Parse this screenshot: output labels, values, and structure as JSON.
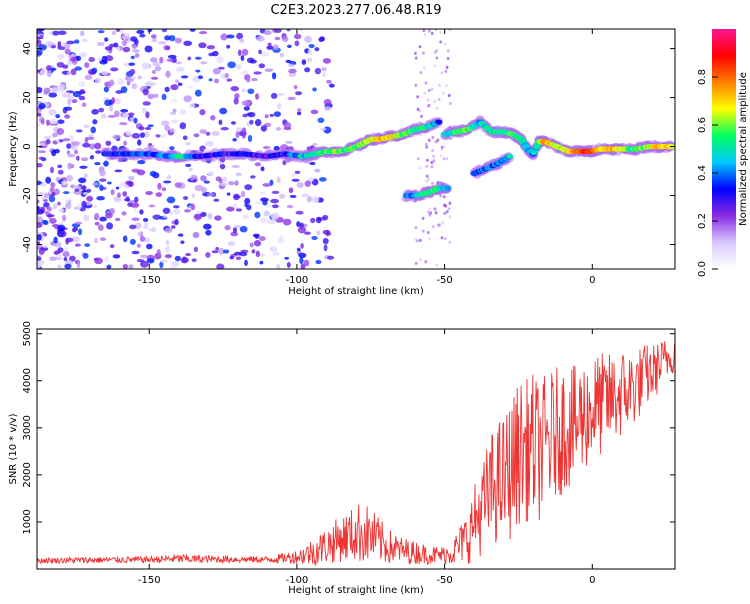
{
  "title": "C2E3.2023.277.06.48.R19",
  "chart_data": [
    {
      "type": "heatmap",
      "title": "C2E3.2023.277.06.48.R19",
      "xlabel": "Height of straight line (km)",
      "ylabel": "Frequency (Hz)",
      "xlim": [
        -188,
        28
      ],
      "ylim": [
        -50,
        48
      ],
      "x_ticks": [
        -150,
        -100,
        -50,
        0
      ],
      "x_tick_labels": [
        "-150",
        "-100",
        "-50",
        "0"
      ],
      "y_ticks": [
        40,
        20,
        0,
        -20,
        -40
      ],
      "y_tick_labels": [
        "40",
        "20",
        "0",
        "-20",
        "-40"
      ],
      "colorbar": {
        "label": "Normalized spectral amplitude",
        "range": [
          0,
          1
        ],
        "ticks": [
          0.0,
          0.2,
          0.4,
          0.6,
          0.8
        ],
        "tick_labels": [
          "0.0",
          "0.2",
          "0.4",
          "0.6",
          "0.8"
        ],
        "colors": [
          "#ffffff",
          "#d8c8ff",
          "#8a2be2",
          "#0000ff",
          "#00c8ff",
          "#00ff60",
          "#ffff00",
          "#ff8000",
          "#ff0000",
          "#ff1493"
        ]
      },
      "series": [
        {
          "points": [
            [
              -165,
              -3,
              0.3
            ],
            [
              -158,
              -3,
              0.35
            ],
            [
              -150,
              -3,
              0.35
            ],
            [
              -143,
              -4,
              0.4
            ],
            [
              -140,
              -4,
              0.55
            ],
            [
              -133,
              -4,
              0.3
            ],
            [
              -125,
              -3,
              0.3
            ],
            [
              -118,
              -3,
              0.3
            ],
            [
              -110,
              -4,
              0.3
            ],
            [
              -104,
              -3,
              0.3
            ],
            [
              -98,
              -4,
              0.45
            ],
            [
              -94,
              -3,
              0.5
            ],
            [
              -90,
              -2,
              0.55
            ],
            [
              -86,
              -2,
              0.6
            ],
            [
              -82,
              -1,
              0.55
            ],
            [
              -78,
              1,
              0.6
            ],
            [
              -75,
              3,
              0.65
            ],
            [
              -72,
              3,
              0.7
            ],
            [
              -68,
              4,
              0.7
            ],
            [
              -64,
              5,
              0.6
            ],
            [
              -60,
              7,
              0.55
            ],
            [
              -56,
              8,
              0.5
            ],
            [
              -52,
              10,
              0.4
            ]
          ]
        },
        {
          "points": [
            [
              -50,
              5,
              0.45
            ],
            [
              -46,
              6,
              0.55
            ],
            [
              -42,
              7,
              0.6
            ],
            [
              -38,
              10,
              0.45
            ],
            [
              -34,
              6,
              0.5
            ],
            [
              -30,
              6,
              0.5
            ],
            [
              -27,
              5,
              0.55
            ],
            [
              -24,
              3,
              0.5
            ],
            [
              -22,
              -1,
              0.45
            ],
            [
              -20,
              -3,
              0.4
            ],
            [
              -18,
              2,
              0.55
            ],
            [
              -16,
              2,
              0.8
            ],
            [
              -12,
              0,
              0.6
            ],
            [
              -8,
              -2,
              0.7
            ],
            [
              -4,
              -2,
              0.8
            ],
            [
              -1,
              -2,
              0.85
            ],
            [
              3,
              -1,
              0.7
            ],
            [
              7,
              -1,
              0.75
            ],
            [
              11,
              -1,
              0.6
            ],
            [
              15,
              -1,
              0.55
            ],
            [
              19,
              0,
              0.6
            ],
            [
              23,
              0,
              0.75
            ],
            [
              27,
              0,
              0.7
            ]
          ]
        },
        {
          "points": [
            [
              -63,
              -20,
              0.4
            ],
            [
              -60,
              -20,
              0.4
            ],
            [
              -56,
              -19,
              0.55
            ],
            [
              -52,
              -17,
              0.5
            ],
            [
              -49,
              -17,
              0.45
            ]
          ]
        },
        {
          "points": [
            [
              -40,
              -11,
              0.35
            ],
            [
              -36,
              -9,
              0.4
            ],
            [
              -32,
              -7,
              0.4
            ],
            [
              -28,
              -4,
              0.45
            ]
          ]
        }
      ]
    },
    {
      "type": "line",
      "title": "",
      "xlabel": "Height of straight line (km)",
      "ylabel": "SNR (10 * v/v)",
      "xlim": [
        -188,
        28
      ],
      "ylim": [
        0,
        5100
      ],
      "x_ticks": [
        -150,
        -100,
        -50,
        0
      ],
      "x_tick_labels": [
        "-150",
        "-100",
        "-50",
        "0"
      ],
      "y_ticks": [
        1000,
        2000,
        3000,
        4000,
        5000
      ],
      "y_tick_labels": [
        "1000",
        "2000",
        "3000",
        "4000",
        "5000"
      ],
      "series": [
        {
          "color": "#ee3333",
          "x": [
            -188,
            -170,
            -150,
            -140,
            -130,
            -110,
            -100,
            -95,
            -90,
            -85,
            -80,
            -78,
            -75,
            -72,
            -70,
            -65,
            -60,
            -55,
            -50,
            -47,
            -45,
            -42,
            -40,
            -37,
            -35,
            -33,
            -30,
            -28,
            -26,
            -25,
            -23,
            -20,
            -18,
            -15,
            -12,
            -10,
            -8,
            -6,
            -4,
            -2,
            0,
            3,
            6,
            9,
            12,
            15,
            18,
            21,
            24,
            28
          ],
          "mean": [
            180,
            190,
            200,
            220,
            210,
            200,
            260,
            350,
            500,
            650,
            750,
            800,
            700,
            600,
            500,
            400,
            350,
            300,
            300,
            380,
            500,
            700,
            1000,
            1300,
            1600,
            1800,
            1900,
            2100,
            2300,
            2500,
            2500,
            2600,
            2500,
            2700,
            2900,
            3000,
            3100,
            3000,
            3200,
            3300,
            3400,
            3500,
            3600,
            3700,
            3800,
            3900,
            4100,
            4200,
            4400,
            4600
          ],
          "spread": [
            60,
            70,
            70,
            100,
            80,
            70,
            150,
            300,
            400,
            500,
            600,
            700,
            600,
            500,
            400,
            300,
            250,
            200,
            200,
            300,
            400,
            600,
            800,
            1000,
            1200,
            1300,
            1400,
            1500,
            1500,
            1600,
            1500,
            1600,
            1500,
            1500,
            1400,
            1400,
            1400,
            1300,
            1300,
            1200,
            1200,
            1100,
            1000,
            1000,
            900,
            800,
            700,
            600,
            500,
            400
          ]
        }
      ]
    }
  ]
}
